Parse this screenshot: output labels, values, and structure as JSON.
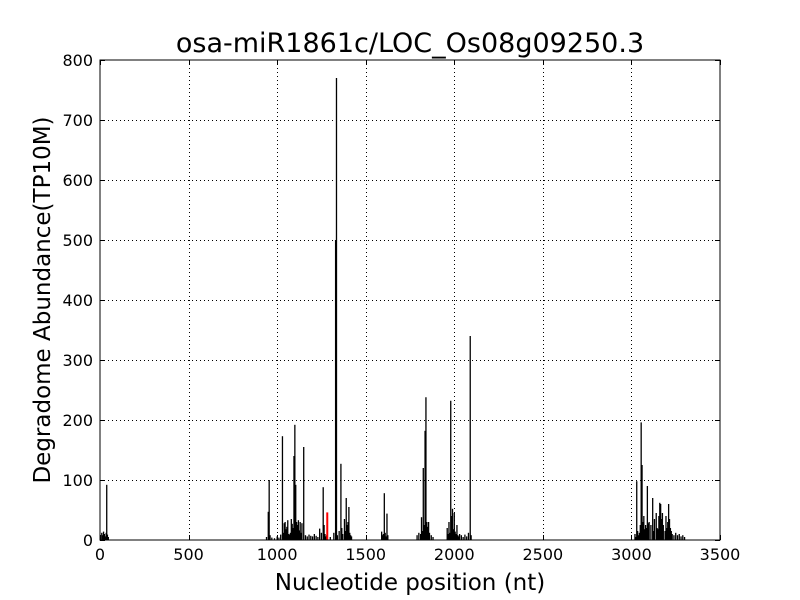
{
  "chart_data": {
    "type": "bar",
    "title": "osa-miR1861c/LOC_Os08g09250.3",
    "xlabel": "Nucleotide position (nt)",
    "ylabel": "Degradome Abundance(TP10M)",
    "xlim": [
      0,
      3500
    ],
    "ylim": [
      0,
      800
    ],
    "xticks": [
      0,
      500,
      1000,
      1500,
      2000,
      2500,
      3000,
      3500
    ],
    "yticks": [
      0,
      100,
      200,
      300,
      400,
      500,
      600,
      700,
      800
    ],
    "grid": true,
    "colors": {
      "background": "#ffffff",
      "bars": "#000000",
      "target_site": "#ff0000",
      "grid": "#000000",
      "axes": "#000000"
    },
    "series": [
      {
        "color": "#000000",
        "points": [
          [
            10,
            12
          ],
          [
            15,
            8
          ],
          [
            20,
            14
          ],
          [
            25,
            10
          ],
          [
            30,
            6
          ],
          [
            35,
            12
          ],
          [
            38,
            92
          ],
          [
            42,
            9
          ],
          [
            47,
            5
          ],
          [
            940,
            5
          ],
          [
            950,
            47
          ],
          [
            955,
            100
          ],
          [
            960,
            8
          ],
          [
            970,
            4
          ],
          [
            985,
            3
          ],
          [
            1000,
            6
          ],
          [
            1010,
            4
          ],
          [
            1020,
            9
          ],
          [
            1030,
            173
          ],
          [
            1035,
            12
          ],
          [
            1040,
            28
          ],
          [
            1045,
            30
          ],
          [
            1050,
            18
          ],
          [
            1055,
            22
          ],
          [
            1060,
            33
          ],
          [
            1065,
            10
          ],
          [
            1070,
            9
          ],
          [
            1075,
            12
          ],
          [
            1080,
            35
          ],
          [
            1085,
            27
          ],
          [
            1090,
            20
          ],
          [
            1095,
            140
          ],
          [
            1100,
            192
          ],
          [
            1105,
            92
          ],
          [
            1110,
            30
          ],
          [
            1115,
            25
          ],
          [
            1120,
            33
          ],
          [
            1125,
            16
          ],
          [
            1130,
            30
          ],
          [
            1135,
            12
          ],
          [
            1140,
            28
          ],
          [
            1150,
            155
          ],
          [
            1160,
            8
          ],
          [
            1170,
            6
          ],
          [
            1180,
            9
          ],
          [
            1190,
            7
          ],
          [
            1200,
            6
          ],
          [
            1210,
            10
          ],
          [
            1220,
            7
          ],
          [
            1230,
            5
          ],
          [
            1240,
            19
          ],
          [
            1250,
            12
          ],
          [
            1260,
            88
          ],
          [
            1265,
            25
          ],
          [
            1270,
            10
          ],
          [
            1275,
            6
          ],
          [
            1280,
            8
          ],
          [
            1300,
            5
          ],
          [
            1320,
            12
          ],
          [
            1330,
            500
          ],
          [
            1335,
            770
          ],
          [
            1340,
            8
          ],
          [
            1350,
            15
          ],
          [
            1360,
            127
          ],
          [
            1365,
            20
          ],
          [
            1370,
            10
          ],
          [
            1380,
            35
          ],
          [
            1385,
            15
          ],
          [
            1390,
            70
          ],
          [
            1395,
            25
          ],
          [
            1400,
            30
          ],
          [
            1405,
            55
          ],
          [
            1410,
            12
          ],
          [
            1415,
            8
          ],
          [
            1420,
            6
          ],
          [
            1590,
            14
          ],
          [
            1595,
            8
          ],
          [
            1600,
            10
          ],
          [
            1605,
            78
          ],
          [
            1610,
            12
          ],
          [
            1615,
            6
          ],
          [
            1620,
            44
          ],
          [
            1625,
            8
          ],
          [
            1790,
            8
          ],
          [
            1800,
            12
          ],
          [
            1810,
            10
          ],
          [
            1815,
            38
          ],
          [
            1820,
            15
          ],
          [
            1825,
            120
          ],
          [
            1830,
            25
          ],
          [
            1835,
            182
          ],
          [
            1840,
            238
          ],
          [
            1845,
            30
          ],
          [
            1850,
            22
          ],
          [
            1855,
            30
          ],
          [
            1860,
            12
          ],
          [
            1870,
            8
          ],
          [
            1880,
            5
          ],
          [
            1960,
            20
          ],
          [
            1965,
            10
          ],
          [
            1970,
            30
          ],
          [
            1975,
            12
          ],
          [
            1980,
            232
          ],
          [
            1985,
            40
          ],
          [
            1990,
            52
          ],
          [
            1995,
            18
          ],
          [
            2000,
            45
          ],
          [
            2005,
            14
          ],
          [
            2010,
            10
          ],
          [
            2015,
            25
          ],
          [
            2020,
            8
          ],
          [
            2025,
            6
          ],
          [
            2030,
            10
          ],
          [
            2040,
            8
          ],
          [
            2050,
            5
          ],
          [
            2060,
            9
          ],
          [
            2070,
            6
          ],
          [
            2080,
            12
          ],
          [
            2090,
            340
          ],
          [
            2095,
            8
          ],
          [
            3020,
            10
          ],
          [
            3025,
            5
          ],
          [
            3030,
            98
          ],
          [
            3035,
            15
          ],
          [
            3040,
            8
          ],
          [
            3045,
            12
          ],
          [
            3050,
            25
          ],
          [
            3055,
            196
          ],
          [
            3060,
            125
          ],
          [
            3065,
            30
          ],
          [
            3070,
            40
          ],
          [
            3075,
            18
          ],
          [
            3080,
            25
          ],
          [
            3085,
            20
          ],
          [
            3090,
            90
          ],
          [
            3095,
            28
          ],
          [
            3100,
            30
          ],
          [
            3110,
            25
          ],
          [
            3120,
            70
          ],
          [
            3125,
            15
          ],
          [
            3130,
            35
          ],
          [
            3140,
            45
          ],
          [
            3145,
            20
          ],
          [
            3150,
            18
          ],
          [
            3155,
            40
          ],
          [
            3160,
            62
          ],
          [
            3165,
            60
          ],
          [
            3170,
            35
          ],
          [
            3175,
            45
          ],
          [
            3180,
            25
          ],
          [
            3190,
            15
          ],
          [
            3195,
            40
          ],
          [
            3200,
            20
          ],
          [
            3205,
            30
          ],
          [
            3210,
            60
          ],
          [
            3215,
            35
          ],
          [
            3220,
            20
          ],
          [
            3225,
            15
          ],
          [
            3230,
            10
          ],
          [
            3240,
            8
          ],
          [
            3250,
            12
          ],
          [
            3260,
            8
          ],
          [
            3270,
            10
          ],
          [
            3280,
            6
          ],
          [
            3290,
            8
          ],
          [
            3300,
            5
          ]
        ]
      },
      {
        "color": "#ff0000",
        "points": [
          [
            1283,
            46
          ]
        ]
      }
    ]
  }
}
